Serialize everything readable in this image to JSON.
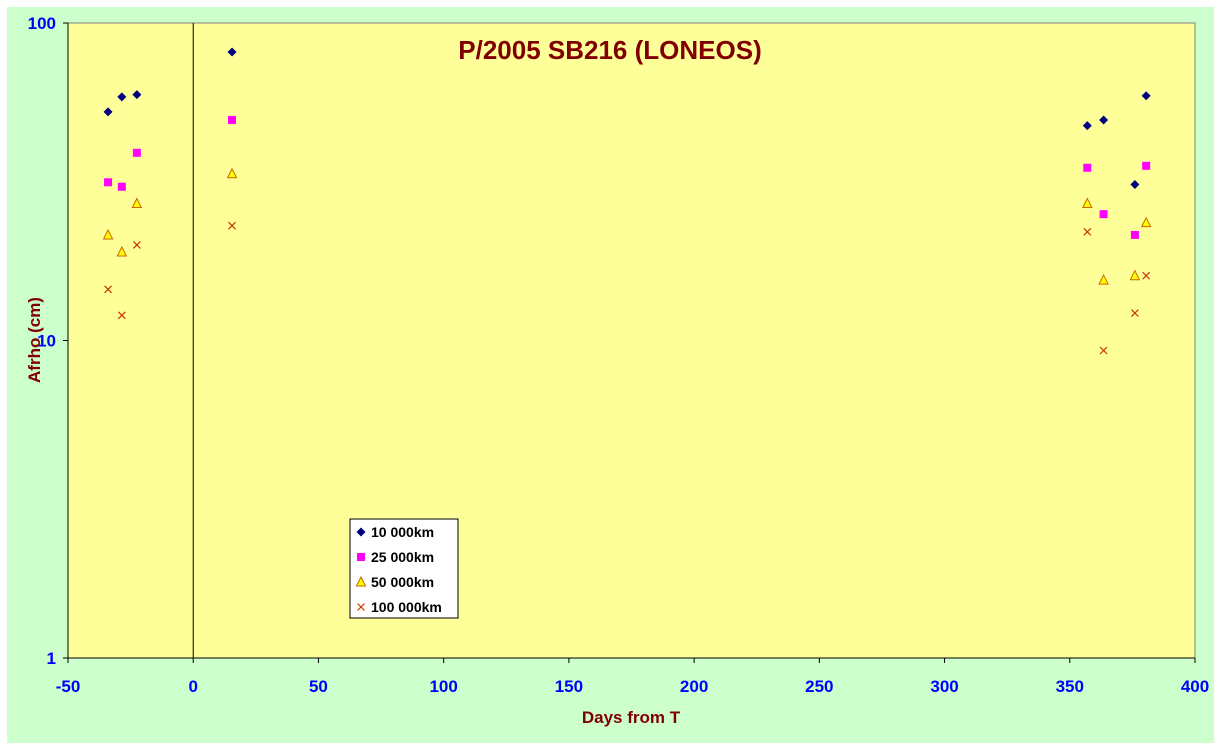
{
  "chart_data": {
    "type": "scatter",
    "title": "P/2005 SB216 (LONEOS)",
    "xlabel": "Days from T",
    "ylabel": "Afrho (cm)",
    "xlim": [
      -50,
      400
    ],
    "xticks": [
      -50,
      0,
      50,
      100,
      150,
      200,
      250,
      300,
      350,
      400
    ],
    "y_scale": "log",
    "ylim": [
      1,
      100
    ],
    "yticks": [
      1,
      10,
      100
    ],
    "grid": false,
    "legend_position": "bottom-left inside plot",
    "colors": {
      "plot_background": "#ffff99",
      "outer_background": "#ccffcc",
      "title": "#800000",
      "ticks": "#0000ff"
    },
    "series": [
      {
        "name": "10 000km",
        "marker": "diamond",
        "color": "#000080",
        "points": [
          [
            -34,
            52.5
          ],
          [
            -28.5,
            58.5
          ],
          [
            -22.5,
            59.5
          ],
          [
            15.5,
            81
          ],
          [
            357,
            47.5
          ],
          [
            363.5,
            49.5
          ],
          [
            376,
            31
          ],
          [
            380.5,
            59
          ]
        ]
      },
      {
        "name": "25 000km",
        "marker": "square",
        "color": "#ff00ff",
        "points": [
          [
            -34,
            31.5
          ],
          [
            -28.5,
            30.5
          ],
          [
            -22.5,
            39
          ],
          [
            15.5,
            49.5
          ],
          [
            357,
            35
          ],
          [
            363.5,
            25
          ],
          [
            376,
            21.5
          ],
          [
            380.5,
            35.5
          ]
        ]
      },
      {
        "name": "50 000km",
        "marker": "triangle",
        "color": "#ffff00",
        "stroke": "#cc6600",
        "points": [
          [
            -34,
            21.5
          ],
          [
            -28.5,
            19
          ],
          [
            -22.5,
            27
          ],
          [
            15.5,
            33.5
          ],
          [
            357,
            27
          ],
          [
            363.5,
            15.5
          ],
          [
            376,
            16
          ],
          [
            380.5,
            23.5
          ]
        ]
      },
      {
        "name": "100 000km",
        "marker": "x",
        "color": "#cc3300",
        "points": [
          [
            -34,
            14.5
          ],
          [
            -28.5,
            12
          ],
          [
            -22.5,
            20
          ],
          [
            15.5,
            23
          ],
          [
            357,
            22
          ],
          [
            363.5,
            9.3
          ],
          [
            376,
            12.2
          ],
          [
            380.5,
            16
          ]
        ]
      }
    ]
  }
}
